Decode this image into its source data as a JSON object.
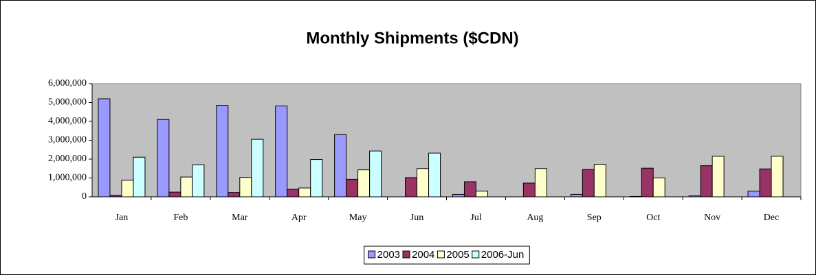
{
  "chart_data": {
    "type": "bar",
    "title": "Monthly Shipments ($CDN)",
    "categories": [
      "Jan",
      "Feb",
      "Mar",
      "Apr",
      "May",
      "Jun",
      "Jul",
      "Aug",
      "Sep",
      "Oct",
      "Nov",
      "Dec"
    ],
    "series": [
      {
        "name": "2003",
        "color": "#9999ff",
        "values": [
          5200000,
          4100000,
          4850000,
          4820000,
          3300000,
          0,
          130000,
          0,
          130000,
          20000,
          50000,
          300000
        ]
      },
      {
        "name": "2004",
        "color": "#993366",
        "values": [
          80000,
          250000,
          230000,
          400000,
          930000,
          1020000,
          800000,
          730000,
          1450000,
          1520000,
          1650000,
          1480000
        ]
      },
      {
        "name": "2005",
        "color": "#ffffcc",
        "values": [
          880000,
          1050000,
          1030000,
          470000,
          1430000,
          1500000,
          300000,
          1500000,
          1720000,
          1000000,
          2150000,
          2150000
        ]
      },
      {
        "name": "2006-Jun",
        "color": "#ccffff",
        "values": [
          2100000,
          1700000,
          3050000,
          1980000,
          2430000,
          2320000,
          null,
          null,
          null,
          null,
          null,
          null
        ]
      }
    ],
    "ylim": [
      0,
      6000000
    ],
    "yticks": [
      0,
      {
        "value": 1000000,
        "label": "1,000,000"
      },
      {
        "value": 2000000,
        "label": "2,000,000"
      },
      {
        "value": 3000000,
        "label": "3,000,000"
      },
      {
        "value": 4000000,
        "label": "4,000,000"
      },
      {
        "value": 5000000,
        "label": "5,000,000"
      },
      {
        "value": 6000000,
        "label": "6,000,000"
      }
    ],
    "grid": false,
    "plot_background": "#c0c0c0",
    "legend": "bottom"
  }
}
